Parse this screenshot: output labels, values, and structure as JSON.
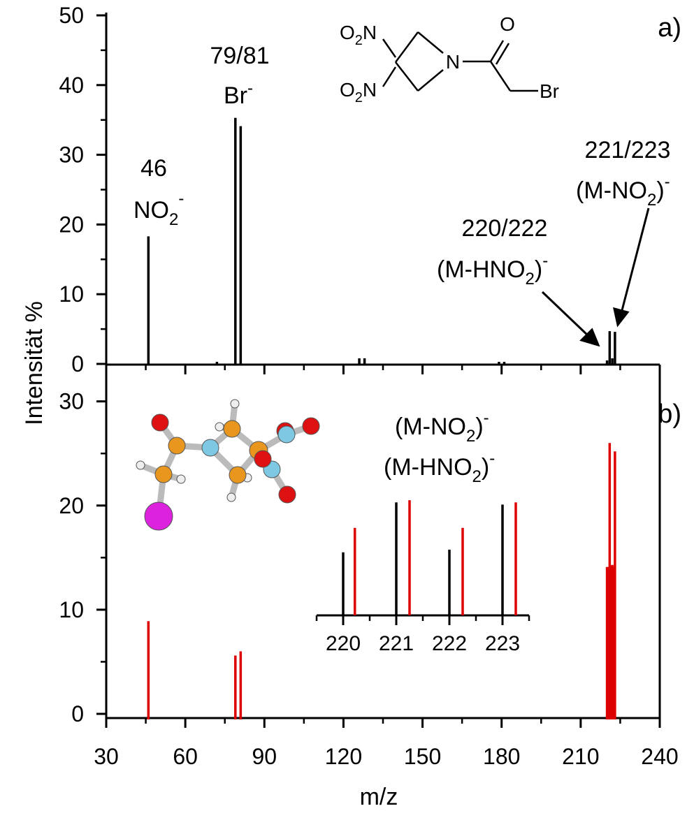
{
  "chart_data": [
    {
      "panel": "a)",
      "type": "bar",
      "xlabel": "m/z",
      "ylabel": "Intensität %",
      "xlim": [
        30,
        240
      ],
      "ylim": [
        0,
        50
      ],
      "x_ticks": [
        "30",
        "60",
        "90",
        "120",
        "150",
        "180",
        "210",
        "240"
      ],
      "y_ticks": [
        "0",
        "10",
        "20",
        "30",
        "40",
        "50"
      ],
      "color": "#000000",
      "series": [
        {
          "x": [
            46,
            72,
            79,
            81,
            126,
            128,
            179,
            181,
            220,
            221,
            222,
            223
          ],
          "values": [
            18.3,
            0.3,
            35.3,
            34.1,
            0.8,
            0.8,
            0.3,
            0.3,
            0.5,
            4.7,
            0.8,
            4.6
          ]
        }
      ],
      "annotations": {
        "peak46": {
          "line1": "46",
          "ion_base": "NO",
          "ion_sub": "2",
          "ion_sup": "-"
        },
        "peak79": {
          "line1": "79/81",
          "ion_base": "Br",
          "ion_sup": "-"
        },
        "peak220": {
          "line1": "220/222",
          "ion_pre": "(M-HNO",
          "ion_sub": "2",
          "ion_post": ")",
          "ion_sup": "-"
        },
        "peak221": {
          "line1": "221/223",
          "ion_pre": "(M-NO",
          "ion_sub": "2",
          "ion_post": ")",
          "ion_sup": "-"
        }
      },
      "structure": {
        "no2_a": "O",
        "no2_b": "O",
        "sub2": "2",
        "n_label": "N",
        "n_atom": "N",
        "o_atom": "O",
        "br_atom": "Br"
      }
    },
    {
      "panel": "b)",
      "type": "bar",
      "xlabel": "m/z",
      "ylabel": "Intensität %",
      "xlim": [
        30,
        240
      ],
      "ylim": [
        0,
        34
      ],
      "x_ticks": [
        "30",
        "60",
        "90",
        "120",
        "150",
        "180",
        "210",
        "240"
      ],
      "y_ticks": [
        "0",
        "10",
        "20",
        "30"
      ],
      "color": "#dd0000",
      "series": [
        {
          "x": [
            46,
            79,
            81,
            220,
            220.5,
            221,
            221.5,
            222,
            222.5,
            223
          ],
          "values": [
            8.9,
            5.6,
            6.0,
            14.1,
            14.1,
            26.0,
            14.2,
            14.3,
            14.1,
            25.2
          ]
        }
      ],
      "inset": {
        "type": "bar",
        "xlim": [
          219.5,
          223.5
        ],
        "ylim": [
          0,
          22.5
        ],
        "x_ticks": [
          "220",
          "221",
          "222",
          "223"
        ],
        "labels": {
          "top": {
            "pre": "(M-NO",
            "sub": "2",
            "post": ")",
            "sup": "-"
          },
          "bottom": {
            "pre": "(M-HNO",
            "sub": "2",
            "post": ")",
            "sup": "-"
          }
        },
        "series": [
          {
            "color": "#000000",
            "x": [
              220,
              221,
              222,
              223
            ],
            "values": [
              11.6,
              20.8,
              12.1,
              20.4
            ]
          },
          {
            "color": "#dd0000",
            "x": [
              220.22,
              221.25,
              222.25,
              223.25
            ],
            "values": [
              16.1,
              21.2,
              16.1,
              20.8
            ]
          }
        ]
      }
    }
  ]
}
